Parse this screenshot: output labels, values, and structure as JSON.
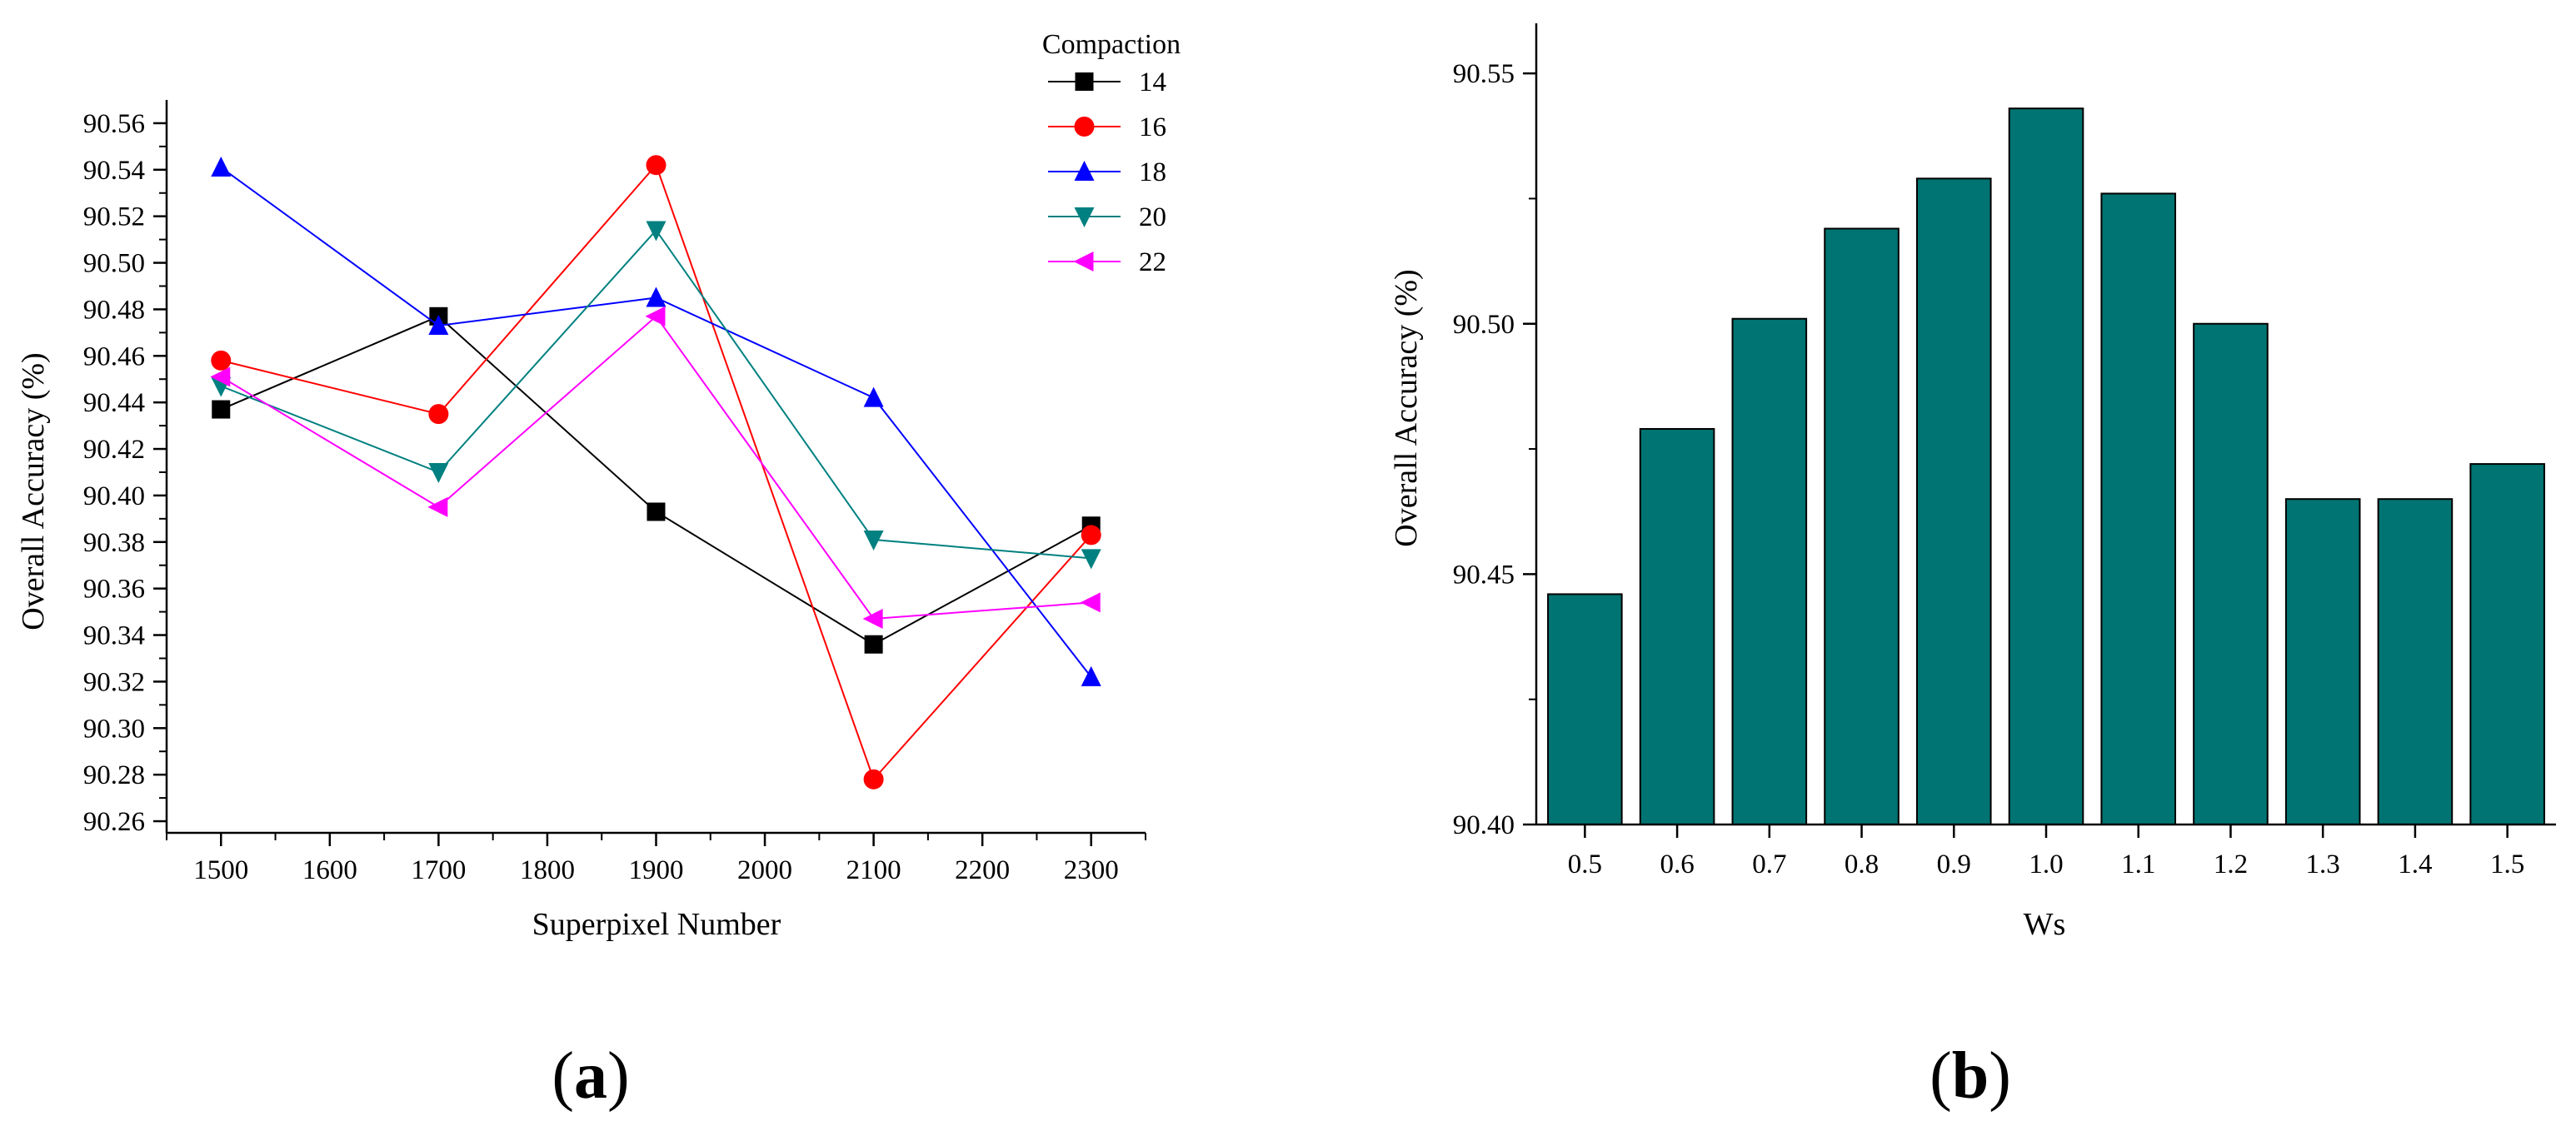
{
  "chart_data": [
    {
      "type": "line",
      "panel_label": {
        "open": "(",
        "letter": "a",
        "close": ")"
      },
      "xlabel": "Superpixel Number",
      "ylabel": "Overall Accuracy (%)",
      "xlim": [
        1450,
        2350
      ],
      "xticks": [
        "1500",
        "1600",
        "1700",
        "1800",
        "1900",
        "2000",
        "2100",
        "2200",
        "2300"
      ],
      "ylim": [
        90.255,
        90.57
      ],
      "yticks": [
        "90.26",
        "90.28",
        "90.30",
        "90.32",
        "90.34",
        "90.36",
        "90.38",
        "90.40",
        "90.42",
        "90.44",
        "90.46",
        "90.48",
        "90.50",
        "90.52",
        "90.54",
        "90.56"
      ],
      "legend_title": "Compaction",
      "legend_position": "top-right",
      "x": [
        1500,
        1700,
        1900,
        2100,
        2300
      ],
      "series": [
        {
          "name": "14",
          "color": "#000000",
          "marker": "square",
          "values": [
            90.437,
            90.477,
            90.393,
            90.336,
            90.387
          ]
        },
        {
          "name": "16",
          "color": "#ff0000",
          "marker": "circle",
          "values": [
            90.458,
            90.435,
            90.542,
            90.278,
            90.383
          ]
        },
        {
          "name": "18",
          "color": "#0000ff",
          "marker": "triangle-up",
          "values": [
            90.541,
            90.473,
            90.485,
            90.442,
            90.322
          ]
        },
        {
          "name": "20",
          "color": "#008080",
          "marker": "triangle-down",
          "values": [
            90.447,
            90.41,
            90.514,
            90.381,
            90.373
          ]
        },
        {
          "name": "22",
          "color": "#ff00ff",
          "marker": "triangle-left",
          "values": [
            90.451,
            90.395,
            90.477,
            90.347,
            90.354
          ]
        }
      ]
    },
    {
      "type": "bar",
      "panel_label": {
        "open": "(",
        "letter": "b",
        "close": ")"
      },
      "xlabel": "Ws",
      "ylabel": "Overall Accuracy (%)",
      "categories": [
        "0.5",
        "0.6",
        "0.7",
        "0.8",
        "0.9",
        "1.0",
        "1.1",
        "1.2",
        "1.3",
        "1.4",
        "1.5"
      ],
      "values": [
        90.446,
        90.479,
        90.501,
        90.519,
        90.529,
        90.543,
        90.526,
        90.5,
        90.465,
        90.465,
        90.472
      ],
      "ylim": [
        90.4,
        90.56
      ],
      "yticks": [
        "90.40",
        "90.45",
        "90.50",
        "90.55"
      ],
      "bar_color": "#007472"
    }
  ]
}
